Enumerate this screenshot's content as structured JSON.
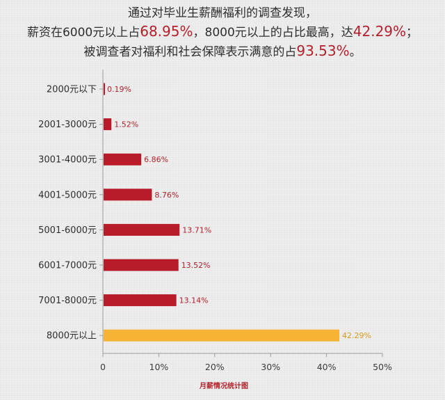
{
  "header": {
    "line1": "通过对毕业生薪酬福利的调查发现，",
    "line2_pre": "薪资在6000元以上占",
    "line2_hl1": "68.95%",
    "line2_mid": "，8000元以上的占比最高，达",
    "line2_hl2": "42.29%",
    "line2_post": "；",
    "line3_pre": "被调查者对福利和社会保障表示满意的占",
    "line3_hl": "93.53%",
    "line3_post": "。"
  },
  "chart_data": {
    "type": "bar",
    "orientation": "horizontal",
    "title": "月薪情况统计图",
    "categories": [
      "2000元以下",
      "2001-3000元",
      "3001-4000元",
      "4001-5000元",
      "5001-6000元",
      "6001-7000元",
      "7001-8000元",
      "8000元以上"
    ],
    "values": [
      0.19,
      1.52,
      6.86,
      8.76,
      13.71,
      13.52,
      13.14,
      42.29
    ],
    "value_labels": [
      "0.19%",
      "1.52%",
      "6.86%",
      "8.76%",
      "13.71%",
      "13.52%",
      "13.14%",
      "42.29%"
    ],
    "xlim": [
      0,
      50
    ],
    "x_ticks": [
      "0",
      "10%",
      "20%",
      "30%",
      "40%",
      "50%"
    ],
    "grid": false,
    "colors": {
      "bar": "#b71c28",
      "highlight_bar": "#f5b433",
      "bar_label": "#b3202a",
      "highlight_label": "#d99a1e",
      "axis": "#999999"
    },
    "highlight_index": 7
  }
}
